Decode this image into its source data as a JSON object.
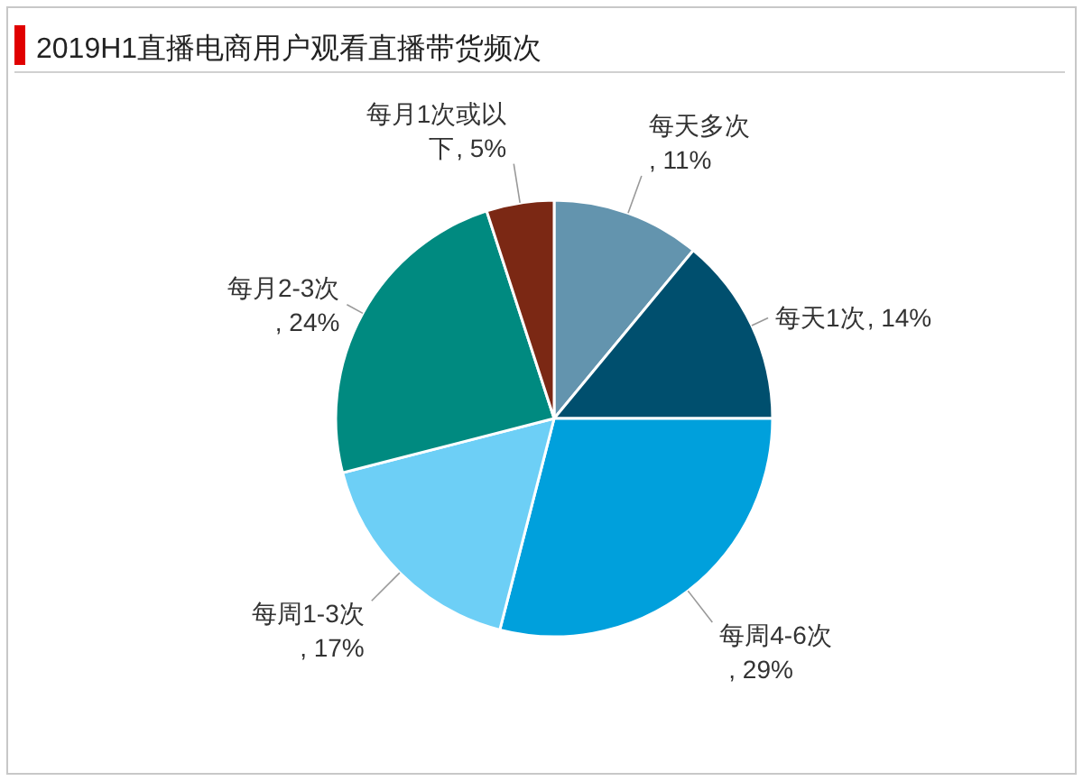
{
  "chart_data": {
    "type": "pie",
    "title": "2019H1直播电商用户观看直播带货频次",
    "categories": [
      "每天多次",
      "每天1次",
      "每周4-6次",
      "每周1-3次",
      "每月2-3次",
      "每月1次或以下"
    ],
    "values": [
      11,
      14,
      29,
      17,
      24,
      5
    ],
    "colors": [
      "#6394ae",
      "#004f6e",
      "#00a0dc",
      "#6dcff6",
      "#008a80",
      "#7b2814"
    ],
    "value_labels": [
      ", 11%",
      ", 14%",
      ", 29%",
      ", 17%",
      ", 24%",
      ", 5%"
    ]
  }
}
